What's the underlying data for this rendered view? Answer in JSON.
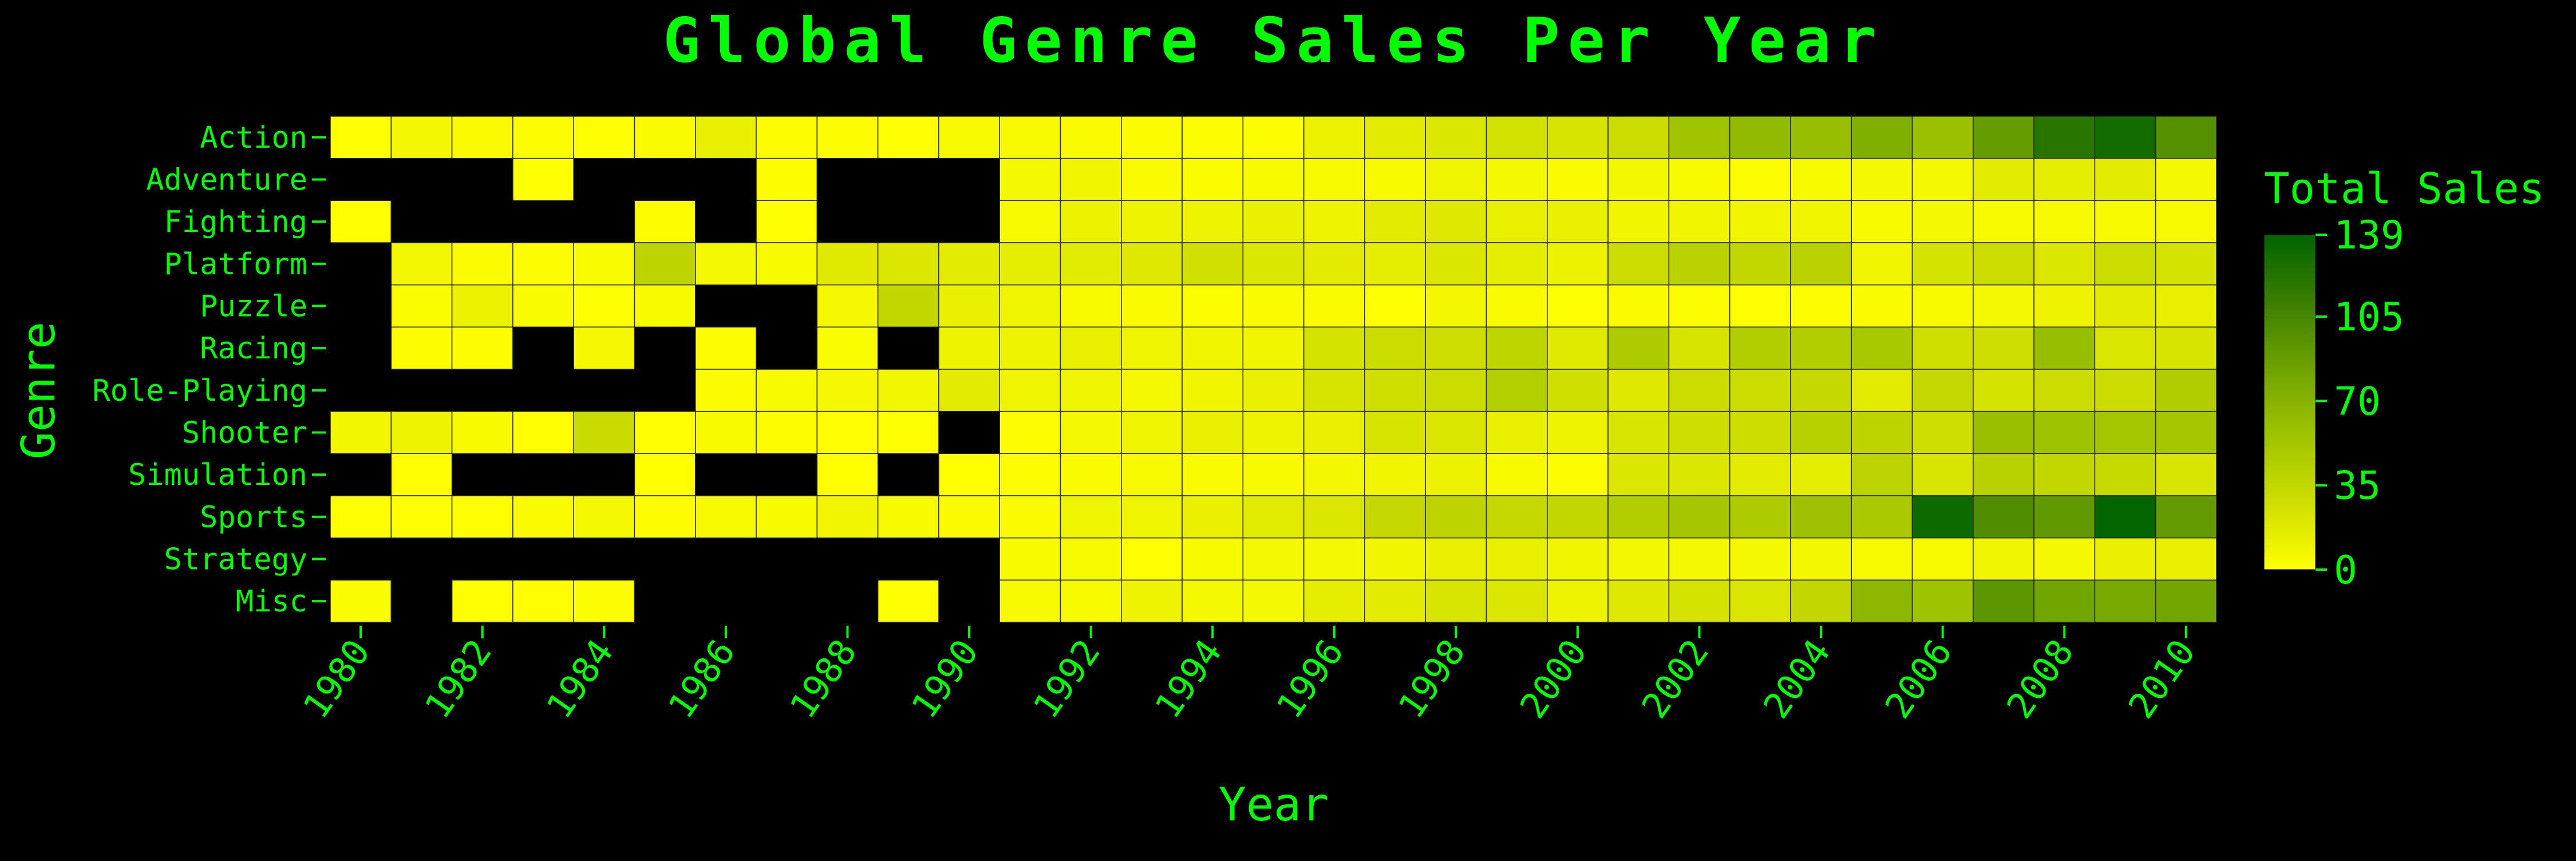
{
  "chart_data": {
    "type": "heatmap",
    "title": "Global Genre Sales Per Year",
    "xlabel": "Year",
    "ylabel": "Genre",
    "x": [
      1980,
      1981,
      1982,
      1983,
      1984,
      1985,
      1986,
      1987,
      1988,
      1989,
      1990,
      1991,
      1992,
      1993,
      1994,
      1995,
      1996,
      1997,
      1998,
      1999,
      2000,
      2001,
      2002,
      2003,
      2004,
      2005,
      2006,
      2007,
      2008,
      2009,
      2010
    ],
    "x_tick_labels": [
      "1980",
      "1982",
      "1984",
      "1986",
      "1988",
      "1990",
      "1992",
      "1994",
      "1996",
      "1998",
      "2000",
      "2002",
      "2004",
      "2006",
      "2008",
      "2010"
    ],
    "categories": [
      "Action",
      "Adventure",
      "Fighting",
      "Platform",
      "Puzzle",
      "Racing",
      "Role-Playing",
      "Shooter",
      "Simulation",
      "Sports",
      "Strategy",
      "Misc"
    ],
    "values": [
      [
        0.3,
        7,
        3,
        2,
        1,
        3.5,
        13,
        1.5,
        1.6,
        0.3,
        5,
        5,
        3,
        2.4,
        2.1,
        2,
        11,
        16,
        20,
        25,
        23,
        30,
        55,
        63,
        60,
        73,
        58,
        89,
        120,
        130,
        98
      ],
      [
        null,
        null,
        null,
        0.4,
        null,
        null,
        null,
        1.4,
        null,
        null,
        null,
        6,
        8,
        3,
        2.5,
        4,
        5,
        4,
        9,
        6,
        3,
        7,
        4,
        2,
        4,
        6,
        6,
        16,
        15,
        16,
        6
      ],
      [
        0.8,
        null,
        null,
        null,
        null,
        1.6,
        null,
        0.4,
        null,
        null,
        null,
        5,
        11,
        10,
        10,
        12,
        10,
        16,
        19,
        13,
        12,
        8,
        8,
        8,
        8,
        4,
        6,
        5,
        5,
        5,
        5
      ],
      [
        null,
        6.9,
        2.2,
        1.9,
        3.4,
        38,
        6,
        3.9,
        18,
        20,
        16,
        15,
        17,
        19,
        26,
        20,
        16,
        14,
        20,
        15,
        11,
        30,
        40,
        35,
        40,
        8,
        24,
        30,
        20,
        30,
        24
      ],
      [
        null,
        2.6,
        10.7,
        3.2,
        1,
        3.7,
        null,
        null,
        5.6,
        35,
        12,
        9,
        4,
        3,
        2,
        3,
        3,
        1,
        7,
        3,
        1,
        3,
        2,
        1,
        2,
        3,
        4,
        6,
        10,
        16,
        13
      ],
      [
        null,
        1.7,
        1.5,
        null,
        5.9,
        null,
        1.9,
        null,
        2.7,
        null,
        9.5,
        10,
        13,
        9,
        8,
        8,
        24,
        30,
        28,
        37,
        18,
        47,
        23,
        44,
        44,
        50,
        27,
        28,
        60,
        21,
        23
      ],
      [
        null,
        null,
        null,
        null,
        null,
        null,
        2.5,
        4.5,
        5.9,
        7.6,
        15.7,
        9,
        9,
        6,
        8,
        12,
        23,
        27,
        30,
        43,
        27,
        19,
        30,
        30,
        33,
        16,
        34,
        24,
        30,
        30,
        45
      ],
      [
        7.1,
        10,
        3.8,
        0.5,
        31,
        1,
        3.9,
        1.5,
        0.5,
        1.2,
        null,
        2,
        6,
        9,
        12,
        10,
        12,
        23,
        21,
        12,
        10,
        22,
        28,
        29,
        42,
        38,
        28,
        59,
        56,
        53,
        52
      ],
      [
        null,
        0.45,
        null,
        null,
        null,
        0.03,
        null,
        null,
        0.03,
        null,
        0.2,
        2,
        3,
        5,
        3,
        4,
        7,
        8,
        11,
        4,
        2,
        20,
        20,
        16,
        15,
        39,
        22,
        41,
        35,
        32,
        22
      ],
      [
        0.5,
        0.8,
        1,
        3,
        6,
        1.3,
        5,
        4,
        8,
        4,
        3,
        3,
        9,
        9,
        12,
        17,
        20,
        34,
        38,
        33,
        35,
        44,
        52,
        47,
        57,
        49,
        133,
        100,
        91,
        138,
        90
      ],
      [
        null,
        null,
        null,
        null,
        null,
        null,
        null,
        null,
        null,
        null,
        null,
        4,
        5,
        1,
        4,
        6,
        6,
        8,
        13,
        13,
        8,
        7,
        6,
        6,
        7,
        5,
        5,
        9,
        6,
        12,
        13
      ],
      [
        2.7,
        null,
        0.9,
        0.5,
        2,
        null,
        null,
        null,
        null,
        1,
        null,
        5,
        4,
        10,
        6,
        6,
        15,
        16,
        22,
        20,
        10,
        19,
        24,
        21,
        35,
        66,
        56,
        94,
        82,
        78,
        81
      ]
    ],
    "colorbar": {
      "title": "Total Sales",
      "zmin": 0,
      "zmax": 139,
      "tick_values": [
        0,
        35,
        70,
        105,
        139
      ],
      "tick_labels": [
        "0",
        "35",
        "70",
        "105",
        "139"
      ],
      "colorscale": [
        "#ffff00",
        "#cede00",
        "#9fc300",
        "#6fa300",
        "#3b7e00",
        "#006400"
      ]
    },
    "missing_color": "#000000",
    "grid": false
  },
  "colors": {
    "background": "#000000",
    "text": "#00ff00",
    "cell_border": "#222222"
  }
}
